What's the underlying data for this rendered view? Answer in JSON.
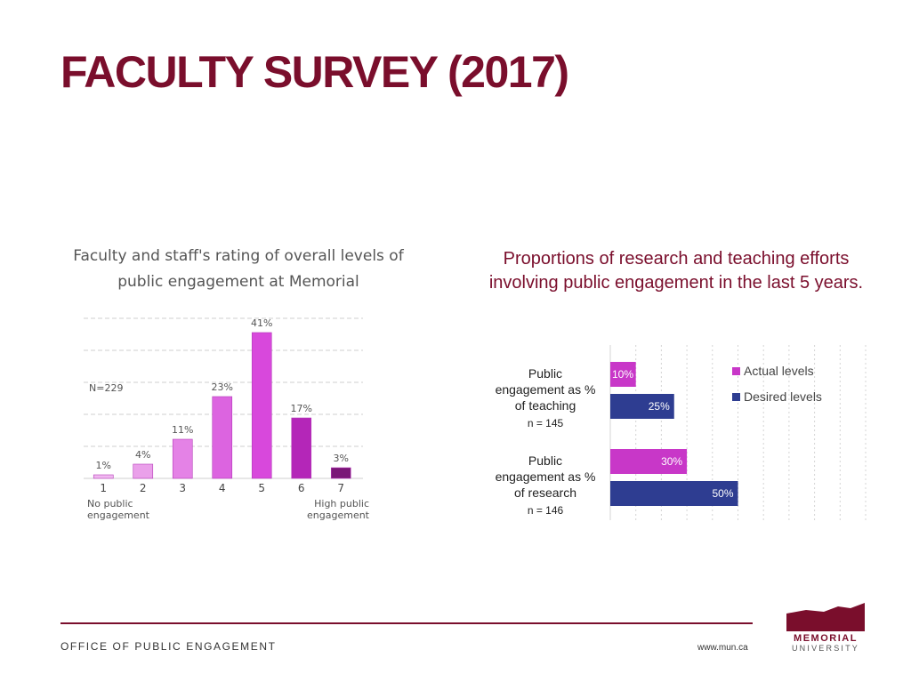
{
  "slide": {
    "title": "FACULTY SURVEY (2017)"
  },
  "colors": {
    "brand": "#7a0e2c",
    "left_series": [
      "#f0b8f0",
      "#eaa0ea",
      "#e482e6",
      "#dc64e0",
      "#d848dc",
      "#b426b8",
      "#7a1677"
    ],
    "actual": "#c837c8",
    "desired": "#2e3d91"
  },
  "footer": {
    "office": "OFFICE OF PUBLIC ENGAGEMENT",
    "url": "www.mun.ca",
    "logo_line1": "MEMORIAL",
    "logo_line2": "UNIVERSITY"
  },
  "chart_data": [
    {
      "type": "bar",
      "title_line1": "Faculty and staff's rating of overall levels of",
      "title_line2": "public engagement at Memorial",
      "categories": [
        "1",
        "2",
        "3",
        "4",
        "5",
        "6",
        "7"
      ],
      "values": [
        1,
        4,
        11,
        23,
        41,
        17,
        3
      ],
      "value_labels": [
        "1%",
        "4%",
        "11%",
        "23%",
        "41%",
        "17%",
        "3%"
      ],
      "sample": "N=229",
      "low_label": [
        "No public",
        "engagement"
      ],
      "high_label": [
        "High public",
        "engagement"
      ],
      "ylim": [
        0,
        45
      ],
      "grid": true
    },
    {
      "type": "bar",
      "orientation": "horizontal",
      "title": "Proportions of research and teaching efforts involving public engagement in the last 5 years.",
      "categories": [
        {
          "lines": [
            "Public",
            "engagement as %",
            "of teaching"
          ],
          "n": "n = 145"
        },
        {
          "lines": [
            "Public",
            "engagement as %",
            "of research"
          ],
          "n": "n = 146"
        }
      ],
      "series": [
        {
          "name": "Actual levels",
          "values": [
            10,
            30
          ],
          "labels": [
            "10%",
            "30%"
          ]
        },
        {
          "name": "Desired levels",
          "values": [
            25,
            50
          ],
          "labels": [
            "25%",
            "50%"
          ]
        }
      ],
      "xlim": [
        0,
        100
      ],
      "legend": "top-right",
      "grid": true
    }
  ]
}
